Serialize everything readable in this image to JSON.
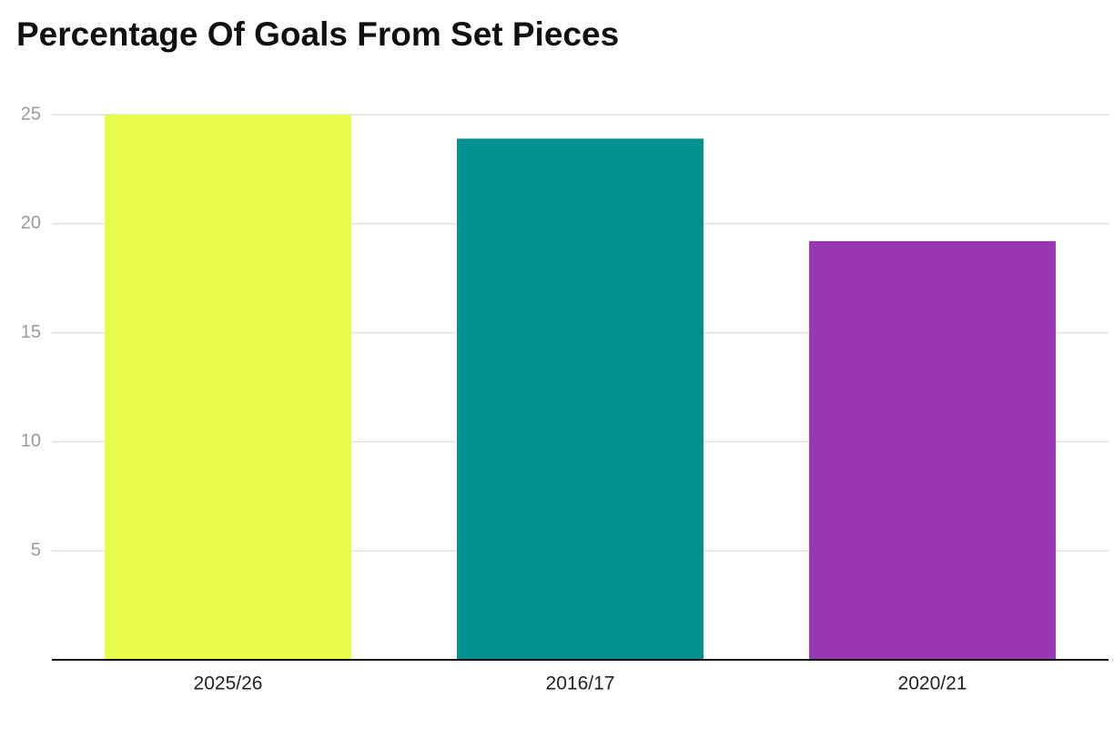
{
  "chart_data": {
    "type": "bar",
    "title": "Percentage Of Goals From Set Pieces",
    "categories": [
      "2025/26",
      "2016/17",
      "2020/21"
    ],
    "values": [
      25,
      23.9,
      19.2
    ],
    "colors": [
      "#e8fc4c",
      "#00908d",
      "#9836b4"
    ],
    "ylim": [
      0,
      25
    ],
    "yticks": [
      5,
      10,
      15,
      20,
      25
    ],
    "grid": true
  }
}
